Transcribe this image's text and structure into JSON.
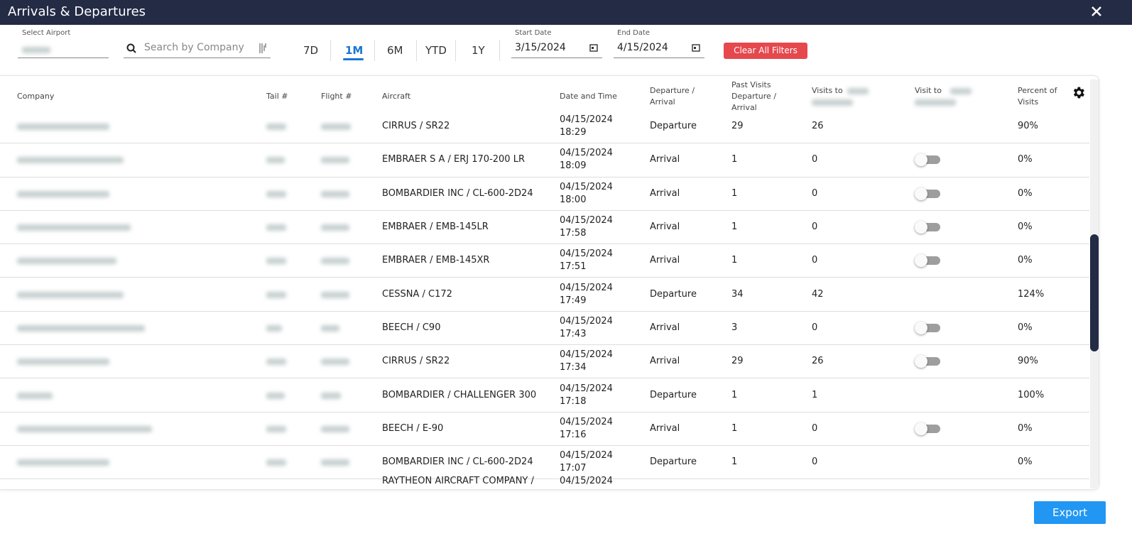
{
  "header": {
    "title": "Arrivals & Departures"
  },
  "filters": {
    "airport_label": "Select Airport",
    "search_placeholder": "Search by Company",
    "ranges": [
      "7D",
      "1M",
      "6M",
      "YTD",
      "1Y"
    ],
    "active_range_index": 1,
    "start_label": "Start Date",
    "start_date": "3/15/2024",
    "end_label": "End Date",
    "end_date": "4/15/2024",
    "clear_button": "Clear All Filters"
  },
  "table": {
    "columns": [
      "Company",
      "Tail #",
      "Flight #",
      "Aircraft",
      "Date and Time",
      "Departure / Arrival",
      "Past Visits Departure / Arrival",
      "Visits to",
      "Visit to",
      "Percent of Visits"
    ],
    "rows": [
      {
        "aircraft": "CIRRUS / SR22",
        "date": "04/15/2024",
        "time": "18:29",
        "direction": "Departure",
        "past_visits": "29",
        "visits_to": "26",
        "toggle": false,
        "percent": "90%"
      },
      {
        "aircraft": "EMBRAER S A / ERJ 170-200 LR",
        "date": "04/15/2024",
        "time": "18:09",
        "direction": "Arrival",
        "past_visits": "1",
        "visits_to": "0",
        "toggle": true,
        "percent": "0%"
      },
      {
        "aircraft": "BOMBARDIER INC / CL-600-2D24",
        "date": "04/15/2024",
        "time": "18:00",
        "direction": "Arrival",
        "past_visits": "1",
        "visits_to": "0",
        "toggle": true,
        "percent": "0%"
      },
      {
        "aircraft": "EMBRAER / EMB-145LR",
        "date": "04/15/2024",
        "time": "17:58",
        "direction": "Arrival",
        "past_visits": "1",
        "visits_to": "0",
        "toggle": true,
        "percent": "0%"
      },
      {
        "aircraft": "EMBRAER / EMB-145XR",
        "date": "04/15/2024",
        "time": "17:51",
        "direction": "Arrival",
        "past_visits": "1",
        "visits_to": "0",
        "toggle": true,
        "percent": "0%"
      },
      {
        "aircraft": "CESSNA / C172",
        "date": "04/15/2024",
        "time": "17:49",
        "direction": "Departure",
        "past_visits": "34",
        "visits_to": "42",
        "toggle": false,
        "percent": "124%"
      },
      {
        "aircraft": "BEECH / C90",
        "date": "04/15/2024",
        "time": "17:43",
        "direction": "Arrival",
        "past_visits": "3",
        "visits_to": "0",
        "toggle": true,
        "percent": "0%"
      },
      {
        "aircraft": "CIRRUS / SR22",
        "date": "04/15/2024",
        "time": "17:34",
        "direction": "Arrival",
        "past_visits": "29",
        "visits_to": "26",
        "toggle": true,
        "percent": "90%"
      },
      {
        "aircraft": "BOMBARDIER / CHALLENGER 300",
        "date": "04/15/2024",
        "time": "17:18",
        "direction": "Departure",
        "past_visits": "1",
        "visits_to": "1",
        "toggle": false,
        "percent": "100%"
      },
      {
        "aircraft": "BEECH / E-90",
        "date": "04/15/2024",
        "time": "17:16",
        "direction": "Arrival",
        "past_visits": "1",
        "visits_to": "0",
        "toggle": true,
        "percent": "0%"
      },
      {
        "aircraft": "BOMBARDIER INC / CL-600-2D24",
        "date": "04/15/2024",
        "time": "17:07",
        "direction": "Departure",
        "past_visits": "1",
        "visits_to": "0",
        "toggle": false,
        "percent": "0%"
      },
      {
        "aircraft": "RAYTHEON AIRCRAFT COMPANY /",
        "date": "04/15/2024",
        "toggle": false
      }
    ]
  },
  "footer": {
    "export_button": "Export"
  }
}
